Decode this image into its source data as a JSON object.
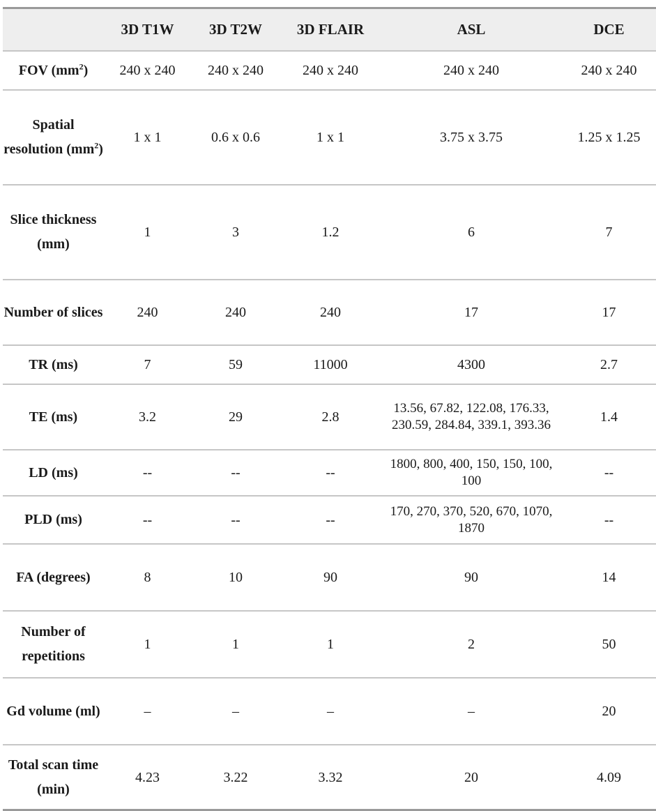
{
  "table": {
    "headers": [
      "",
      "3D T1W",
      "3D T2W",
      "3D FLAIR",
      "ASL",
      "DCE"
    ],
    "rows": [
      {
        "label": "FOV (mm",
        "label_sup": "2",
        "label_after": ")",
        "cells": [
          "240 x 240",
          "240 x 240",
          "240 x 240",
          "240 x 240",
          "240 x 240"
        ]
      },
      {
        "label": "Spatial resolution (mm",
        "label_sup": "2",
        "label_after": ")",
        "cells": [
          "1 x 1",
          "0.6 x 0.6",
          "1 x 1",
          "3.75 x 3.75",
          "1.25 x 1.25"
        ]
      },
      {
        "label": "Slice thickness (mm)",
        "cells": [
          "1",
          "3",
          "1.2",
          "6",
          "7"
        ]
      },
      {
        "label": "Number of slices",
        "cells": [
          "240",
          "240",
          "240",
          "17",
          "17"
        ]
      },
      {
        "label": "TR (ms)",
        "cells": [
          "7",
          "59",
          "11000",
          "4300",
          "2.7"
        ]
      },
      {
        "label": "TE (ms)",
        "cells": [
          "3.2",
          "29",
          "2.8",
          "13.56, 67.82, 122.08, 176.33, 230.59, 284.84, 339.1, 393.36",
          "1.4"
        ]
      },
      {
        "label": "LD (ms)",
        "cells": [
          "--",
          "--",
          "--",
          "1800, 800, 400, 150, 150, 100, 100",
          "--"
        ]
      },
      {
        "label": "PLD (ms)",
        "cells": [
          "--",
          "--",
          "--",
          "170, 270, 370, 520, 670, 1070, 1870",
          "--"
        ]
      },
      {
        "label": "FA (degrees)",
        "cells": [
          "8",
          "10",
          "90",
          "90",
          "14"
        ]
      },
      {
        "label": "Number of repetitions",
        "cells": [
          "1",
          "1",
          "1",
          "2",
          "50"
        ]
      },
      {
        "label": "Gd volume (ml)",
        "cells": [
          "–",
          "–",
          "–",
          "–",
          "20"
        ]
      },
      {
        "label": "Total scan time (min)",
        "cells": [
          "4.23",
          "3.22",
          "3.32",
          "20",
          "4.09"
        ]
      }
    ]
  }
}
